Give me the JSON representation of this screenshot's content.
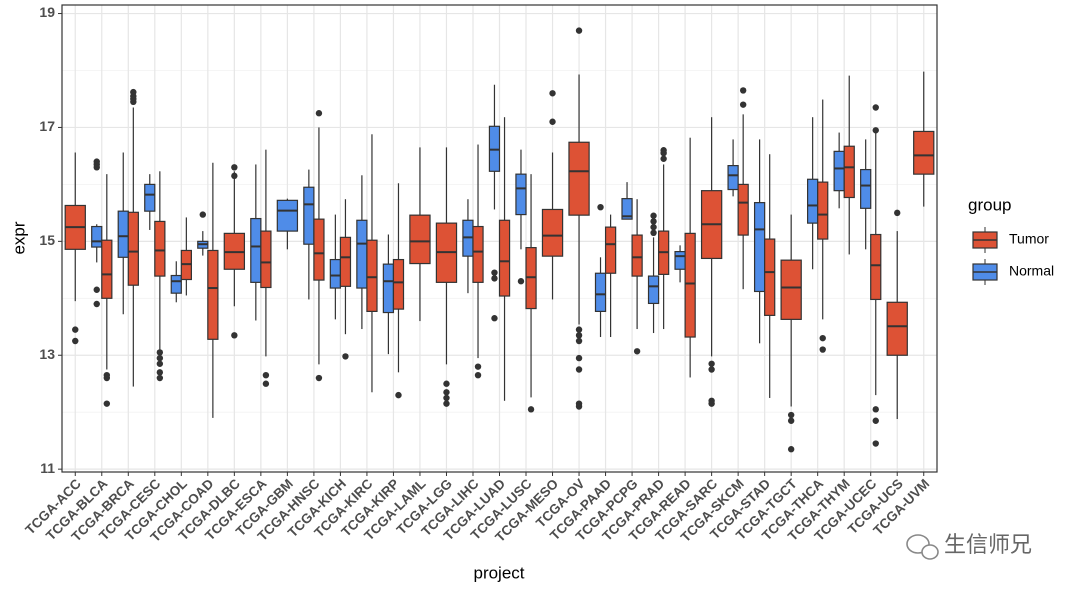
{
  "chart_data": {
    "type": "boxplot",
    "x_label": "project",
    "y_label": "expr",
    "legend_title": "group",
    "legend_position": "right",
    "watermark": "生信师兄",
    "ylim": [
      10.95,
      19.15
    ],
    "yticks": [
      11,
      13,
      15,
      17,
      19
    ],
    "grid": true,
    "categories": [
      "TCGA-ACC",
      "TCGA-BLCA",
      "TCGA-BRCA",
      "TCGA-CESC",
      "TCGA-CHOL",
      "TCGA-COAD",
      "TCGA-DLBC",
      "TCGA-ESCA",
      "TCGA-GBM",
      "TCGA-HNSC",
      "TCGA-KICH",
      "TCGA-KIRC",
      "TCGA-KIRP",
      "TCGA-LAML",
      "TCGA-LGG",
      "TCGA-LIHC",
      "TCGA-LUAD",
      "TCGA-LUSC",
      "TCGA-MESO",
      "TCGA-OV",
      "TCGA-PAAD",
      "TCGA-PCPG",
      "TCGA-PRAD",
      "TCGA-READ",
      "TCGA-SARC",
      "TCGA-SKCM",
      "TCGA-STAD",
      "TCGA-TGCT",
      "TCGA-THCA",
      "TCGA-THYM",
      "TCGA-UCEC",
      "TCGA-UCS",
      "TCGA-UVM"
    ],
    "series": [
      {
        "name": "Tumor",
        "color": "#dd5235",
        "values": [
          {
            "min": 13.95,
            "q1": 14.86,
            "median": 15.25,
            "q3": 15.63,
            "max": 16.56,
            "outliers": [
              13.45,
              13.25
            ]
          },
          {
            "min": 12.75,
            "q1": 14.0,
            "median": 14.42,
            "q3": 15.02,
            "max": 16.18,
            "outliers": [
              12.65,
              12.6,
              12.15
            ]
          },
          {
            "min": 12.45,
            "q1": 14.23,
            "median": 14.82,
            "q3": 15.51,
            "max": 17.35,
            "outliers": [
              17.62,
              17.55,
              17.5,
              17.45
            ]
          },
          {
            "min": 13.1,
            "q1": 14.39,
            "median": 14.84,
            "q3": 15.35,
            "max": 16.23,
            "outliers": [
              13.05,
              12.95,
              12.85,
              12.7,
              12.6
            ]
          },
          {
            "min": 14.05,
            "q1": 14.33,
            "median": 14.6,
            "q3": 14.84,
            "max": 15.42,
            "outliers": []
          },
          {
            "min": 11.9,
            "q1": 13.28,
            "median": 14.18,
            "q3": 14.84,
            "max": 16.38,
            "outliers": []
          },
          {
            "min": 13.86,
            "q1": 14.51,
            "median": 14.81,
            "q3": 15.14,
            "max": 16.23,
            "outliers": [
              16.3,
              16.15,
              13.35
            ]
          },
          {
            "min": 12.98,
            "q1": 14.19,
            "median": 14.63,
            "q3": 15.18,
            "max": 16.61,
            "outliers": [
              12.65,
              12.5
            ]
          },
          null,
          {
            "min": 12.84,
            "q1": 14.32,
            "median": 14.79,
            "q3": 15.39,
            "max": 17.0,
            "outliers": [
              17.25,
              12.6
            ]
          },
          {
            "min": 13.37,
            "q1": 14.21,
            "median": 14.72,
            "q3": 15.07,
            "max": 15.74,
            "outliers": [
              12.98
            ]
          },
          {
            "min": 12.35,
            "q1": 13.77,
            "median": 14.37,
            "q3": 15.02,
            "max": 16.88,
            "outliers": []
          },
          {
            "min": 12.7,
            "q1": 13.81,
            "median": 14.28,
            "q3": 14.68,
            "max": 16.02,
            "outliers": [
              12.3
            ]
          },
          {
            "min": 13.6,
            "q1": 14.61,
            "median": 15.0,
            "q3": 15.46,
            "max": 16.65,
            "outliers": []
          },
          {
            "min": 12.84,
            "q1": 14.28,
            "median": 14.81,
            "q3": 15.32,
            "max": 16.65,
            "outliers": [
              12.5,
              12.35,
              12.25,
              12.15
            ]
          },
          {
            "min": 12.95,
            "q1": 14.28,
            "median": 14.82,
            "q3": 15.26,
            "max": 16.7,
            "outliers": [
              12.8,
              12.65
            ]
          },
          {
            "min": 12.2,
            "q1": 14.04,
            "median": 14.65,
            "q3": 15.37,
            "max": 17.18,
            "outliers": []
          },
          {
            "min": 12.26,
            "q1": 13.82,
            "median": 14.37,
            "q3": 14.89,
            "max": 16.18,
            "outliers": [
              12.05
            ]
          },
          {
            "min": 13.98,
            "q1": 14.74,
            "median": 15.1,
            "q3": 15.56,
            "max": 16.56,
            "outliers": [
              17.6,
              17.1
            ]
          },
          {
            "min": 13.54,
            "q1": 15.46,
            "median": 16.23,
            "q3": 16.74,
            "max": 17.93,
            "outliers": [
              18.7,
              13.45,
              13.35,
              13.25,
              12.95,
              12.75,
              12.15,
              12.1
            ]
          },
          {
            "min": 13.32,
            "q1": 14.44,
            "median": 14.95,
            "q3": 15.25,
            "max": 15.47,
            "outliers": []
          },
          {
            "min": 13.46,
            "q1": 14.39,
            "median": 14.72,
            "q3": 15.11,
            "max": 15.74,
            "outliers": [
              13.07
            ]
          },
          {
            "min": 13.46,
            "q1": 14.42,
            "median": 14.81,
            "q3": 15.18,
            "max": 16.35,
            "outliers": [
              16.6,
              16.55,
              16.45
            ]
          },
          {
            "min": 12.61,
            "q1": 13.32,
            "median": 14.26,
            "q3": 15.14,
            "max": 16.82,
            "outliers": []
          },
          {
            "min": 12.98,
            "q1": 14.7,
            "median": 15.3,
            "q3": 15.89,
            "max": 17.18,
            "outliers": [
              12.85,
              12.75,
              12.2,
              12.15
            ]
          },
          {
            "min": 14.16,
            "q1": 15.11,
            "median": 15.68,
            "q3": 16.0,
            "max": 17.23,
            "outliers": [
              17.65,
              17.4
            ]
          },
          {
            "min": 12.25,
            "q1": 13.7,
            "median": 14.46,
            "q3": 15.04,
            "max": 16.53,
            "outliers": []
          },
          {
            "min": 12.1,
            "q1": 13.63,
            "median": 14.19,
            "q3": 14.67,
            "max": 15.47,
            "outliers": [
              11.95,
              11.85,
              11.35
            ]
          },
          {
            "min": 13.63,
            "q1": 15.04,
            "median": 15.47,
            "q3": 16.04,
            "max": 17.49,
            "outliers": [
              13.3,
              13.1
            ]
          },
          {
            "min": 14.77,
            "q1": 15.77,
            "median": 16.3,
            "q3": 16.67,
            "max": 17.91,
            "outliers": []
          },
          {
            "min": 12.3,
            "q1": 13.98,
            "median": 14.58,
            "q3": 15.12,
            "max": 16.96,
            "outliers": [
              17.35,
              16.95,
              12.05,
              11.85,
              11.45
            ]
          },
          {
            "min": 11.88,
            "q1": 13.0,
            "median": 13.51,
            "q3": 13.93,
            "max": 15.18,
            "outliers": [
              15.5
            ]
          },
          {
            "min": 15.61,
            "q1": 16.18,
            "median": 16.51,
            "q3": 16.93,
            "max": 17.98,
            "outliers": []
          }
        ]
      },
      {
        "name": "Normal",
        "color": "#4f8ce8",
        "values": [
          null,
          {
            "min": 14.63,
            "q1": 14.9,
            "median": 15.0,
            "q3": 15.26,
            "max": 15.3,
            "outliers": [
              16.4,
              16.35,
              16.3,
              14.15,
              13.9
            ]
          },
          {
            "min": 13.72,
            "q1": 14.72,
            "median": 15.09,
            "q3": 15.53,
            "max": 16.56,
            "outliers": []
          },
          {
            "min": 15.2,
            "q1": 15.53,
            "median": 15.82,
            "q3": 16.0,
            "max": 16.18,
            "outliers": []
          },
          {
            "min": 13.93,
            "q1": 14.09,
            "median": 14.3,
            "q3": 14.4,
            "max": 14.65,
            "outliers": []
          },
          {
            "min": 14.75,
            "q1": 14.88,
            "median": 14.95,
            "q3": 15.0,
            "max": 15.18,
            "outliers": [
              15.47
            ]
          },
          null,
          {
            "min": 13.61,
            "q1": 14.28,
            "median": 14.91,
            "q3": 15.4,
            "max": 16.35,
            "outliers": []
          },
          {
            "min": 14.86,
            "q1": 15.18,
            "median": 15.54,
            "q3": 15.72,
            "max": 15.75,
            "outliers": []
          },
          {
            "min": 13.98,
            "q1": 14.95,
            "median": 15.65,
            "q3": 15.95,
            "max": 16.26,
            "outliers": []
          },
          {
            "min": 13.63,
            "q1": 14.18,
            "median": 14.4,
            "q3": 14.68,
            "max": 15.47,
            "outliers": []
          },
          {
            "min": 13.46,
            "q1": 14.18,
            "median": 14.96,
            "q3": 15.37,
            "max": 16.16,
            "outliers": []
          },
          {
            "min": 13.02,
            "q1": 13.75,
            "median": 14.3,
            "q3": 14.6,
            "max": 15.12,
            "outliers": []
          },
          null,
          null,
          {
            "min": 14.09,
            "q1": 14.74,
            "median": 15.07,
            "q3": 15.37,
            "max": 15.74,
            "outliers": []
          },
          {
            "min": 15.56,
            "q1": 16.23,
            "median": 16.61,
            "q3": 17.02,
            "max": 17.75,
            "outliers": [
              14.45,
              14.35,
              13.65
            ]
          },
          {
            "min": 14.86,
            "q1": 15.47,
            "median": 15.93,
            "q3": 16.18,
            "max": 16.61,
            "outliers": [
              14.3
            ]
          },
          null,
          null,
          {
            "min": 13.32,
            "q1": 13.77,
            "median": 14.07,
            "q3": 14.44,
            "max": 14.72,
            "outliers": [
              15.6
            ]
          },
          {
            "min": 15.39,
            "q1": 15.39,
            "median": 15.44,
            "q3": 15.75,
            "max": 16.04,
            "outliers": []
          },
          {
            "min": 13.39,
            "q1": 13.91,
            "median": 14.21,
            "q3": 14.39,
            "max": 15.07,
            "outliers": [
              15.45,
              15.35,
              15.25,
              15.15
            ]
          },
          {
            "min": 14.28,
            "q1": 14.51,
            "median": 14.74,
            "q3": 14.82,
            "max": 14.93,
            "outliers": []
          },
          null,
          {
            "min": 15.79,
            "q1": 15.91,
            "median": 16.16,
            "q3": 16.33,
            "max": 16.79,
            "outliers": []
          },
          {
            "min": 13.21,
            "q1": 14.12,
            "median": 15.21,
            "q3": 15.68,
            "max": 16.79,
            "outliers": []
          },
          null,
          {
            "min": 14.51,
            "q1": 15.32,
            "median": 15.63,
            "q3": 16.09,
            "max": 17.18,
            "outliers": []
          },
          {
            "min": 15.58,
            "q1": 15.89,
            "median": 16.28,
            "q3": 16.58,
            "max": 16.91,
            "outliers": []
          },
          {
            "min": 14.86,
            "q1": 15.58,
            "median": 15.98,
            "q3": 16.26,
            "max": 16.79,
            "outliers": []
          },
          null,
          null
        ]
      }
    ]
  }
}
